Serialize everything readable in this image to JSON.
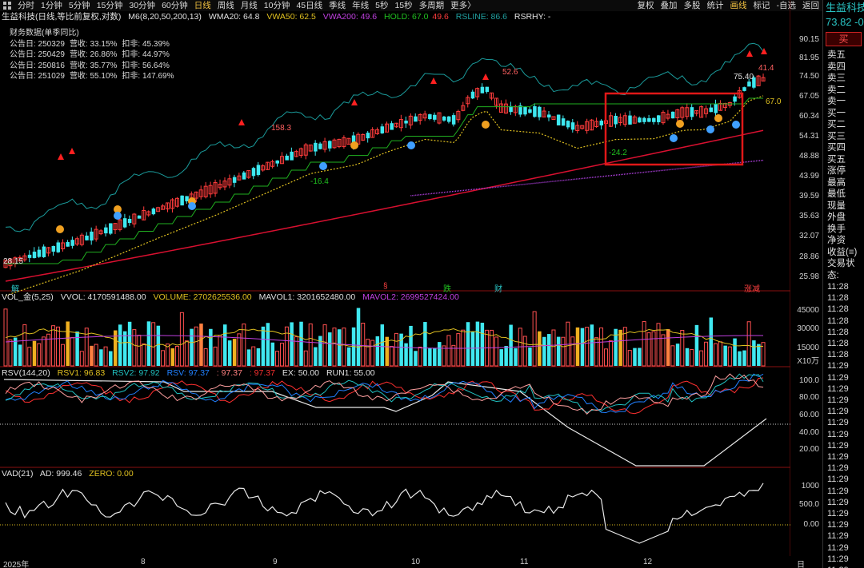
{
  "toolbar": {
    "periods": [
      "分时",
      "1分钟",
      "5分钟",
      "15分钟",
      "30分钟",
      "60分钟",
      "日线",
      "周线",
      "月线",
      "10分钟",
      "45日线",
      "季线",
      "年线",
      "5秒",
      "15秒",
      "多周期",
      "更多〉"
    ],
    "active_period": "日线",
    "tools": [
      "复权",
      "叠加",
      "多股",
      "统计",
      "画线",
      "标记",
      "-自选",
      "返回"
    ],
    "active_tool": "画线"
  },
  "main_info": {
    "title": "生益科技(日线,等比前复权,对数)",
    "indicator": "M6(8,20,50,200,13)",
    "wma20": "WMA20: 64.8",
    "vwa50": "VWA50: 62.5",
    "vwa200": "VWA200: 49.6",
    "hold": "HOLD: 67.0",
    "hold2": "49.6",
    "rsline": "RSLINE: 86.6",
    "rsrhy": "RSRHY: -"
  },
  "financials": {
    "title": "财务数据(单季同比)",
    "rows": [
      {
        "date": "公告日: 250329",
        "rev": "营收: 33.15%",
        "net": "扣非: 45.39%"
      },
      {
        "date": "公告日: 250429",
        "rev": "营收: 26.86%",
        "net": "扣非: 44.97%"
      },
      {
        "date": "公告日: 250816",
        "rev": "营收: 35.77%",
        "net": "扣非: 56.64%"
      },
      {
        "date": "公告日: 251029",
        "rev": "营收: 55.10%",
        "net": "扣非: 147.69%"
      }
    ]
  },
  "price_axis": [
    "90.15",
    "81.95",
    "74.50",
    "67.05",
    "60.34",
    "54.31",
    "48.88",
    "43.99",
    "39.59",
    "35.63",
    "32.07",
    "28.86",
    "25.98"
  ],
  "price_labels": {
    "p1583": "158.3",
    "p526": "52.6",
    "p164": "-16.4",
    "p242": "-24.2",
    "p2815": "28.15",
    "p7540": "75.40",
    "p414": "41.4",
    "p670": "67.0"
  },
  "event_labels": {
    "jie": "解",
    "s": "§",
    "die": "跌",
    "cai": "财",
    "zhangjian": "涨减"
  },
  "vol_info": {
    "name": "VOL_金(5,25)",
    "vvol": "VVOL: 4170591488.00",
    "volume": "VOLUME: 2702625536.00",
    "mavol1": "MAVOL1: 3201652480.00",
    "mavol2": "MAVOL2: 2699527424.00"
  },
  "vol_axis": [
    "45000",
    "30000",
    "15000",
    "X10万"
  ],
  "rsv_info": {
    "name": "RSV(144,20)",
    "rsv1": "RSV1: 96.83",
    "rsv2": "RSV2: 97.92",
    "rsv": "RSV: 97.37",
    "v4": ": 97.37",
    "v5": ": 97.37",
    "ex": "EX: 50.00",
    "run1": "RUN1: 55.00"
  },
  "rsv_axis": [
    "100.0",
    "80.00",
    "60.00",
    "40.00",
    "20.00"
  ],
  "vad_info": {
    "name": "VAD(21)",
    "ad": "AD: 999.46",
    "zero": "ZERO: 0.00"
  },
  "vad_axis": [
    "1000",
    "500.0",
    "0.00"
  ],
  "bottom_axis": {
    "year": "2025年",
    "months": [
      "8",
      "9",
      "10",
      "11",
      "12"
    ],
    "period": "日线"
  },
  "right_panel": {
    "title": "生益科技",
    "price": "73.82 -0",
    "buy": "买",
    "book": [
      "卖五",
      "卖四",
      "卖三",
      "卖二",
      "卖一",
      "买一",
      "买二",
      "买三",
      "买四",
      "买五",
      "涨停",
      "最高",
      "最低",
      "现量",
      "外盘",
      "换手",
      "净资",
      "收益(≡)",
      "交易状态:"
    ],
    "times": [
      "11:28",
      "11:28",
      "11:28",
      "11:28",
      "11:28",
      "11:28",
      "11:28",
      "11:29",
      "11:29",
      "11:29",
      "11:29",
      "11:29",
      "11:29",
      "11:29",
      "11:29",
      "11:29",
      "11:29",
      "11:29",
      "11:29",
      "11:29",
      "11:29",
      "11:29",
      "11:29",
      "11:29",
      "11:29",
      "11:29"
    ]
  },
  "colors": {
    "up": "#ff3c3c",
    "down": "#3ee8f0",
    "wma": "#20a0a0",
    "hold": "#20c020",
    "vwa50": "#e0c020",
    "vwa200": "#e01030",
    "purple": "#c040e0",
    "highlight": "#e01818"
  }
}
